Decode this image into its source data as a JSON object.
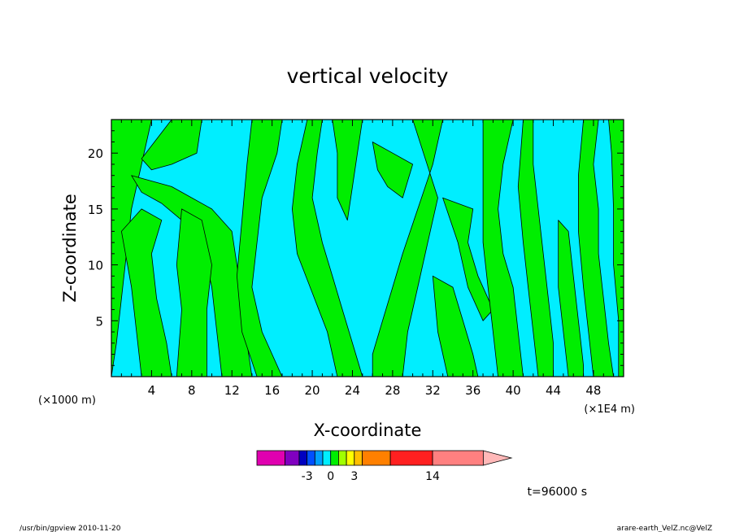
{
  "chart_data": {
    "type": "heatmap",
    "title": "vertical velocity",
    "xlabel": "X-coordinate",
    "ylabel": "Z-coordinate",
    "x_unit_left": "(×1000 m)",
    "x_unit_right": "(×1E4 m)",
    "xlim": [
      0,
      51
    ],
    "ylim": [
      0,
      23
    ],
    "x_ticks": [
      4,
      8,
      12,
      16,
      20,
      24,
      28,
      32,
      36,
      40,
      44,
      48
    ],
    "y_ticks": [
      5,
      10,
      15,
      20
    ],
    "field_colors": {
      "negative": "#00eeff",
      "positive": "#00ee00"
    },
    "regions": [
      {
        "sign": "positive",
        "polygon": [
          [
            0,
            23
          ],
          [
            4,
            23
          ],
          [
            3,
            19
          ],
          [
            2,
            15
          ],
          [
            1.5,
            11
          ],
          [
            1,
            7
          ],
          [
            0.5,
            3
          ],
          [
            0,
            0
          ]
        ]
      },
      {
        "sign": "positive",
        "polygon": [
          [
            6,
            23
          ],
          [
            9,
            23
          ],
          [
            8.5,
            20
          ],
          [
            6,
            19
          ],
          [
            4,
            18.5
          ],
          [
            3,
            19.5
          ]
        ]
      },
      {
        "sign": "positive",
        "polygon": [
          [
            2,
            18
          ],
          [
            6,
            17
          ],
          [
            10,
            15
          ],
          [
            12,
            13
          ],
          [
            12.5,
            10
          ],
          [
            13,
            7
          ],
          [
            13.5,
            3
          ],
          [
            14,
            0
          ],
          [
            11,
            0
          ],
          [
            10.5,
            4
          ],
          [
            10,
            8
          ],
          [
            9,
            12
          ],
          [
            7,
            14
          ],
          [
            5,
            15.5
          ],
          [
            3,
            16.5
          ]
        ]
      },
      {
        "sign": "positive",
        "polygon": [
          [
            1,
            13
          ],
          [
            3,
            15
          ],
          [
            5,
            14
          ],
          [
            4,
            11
          ],
          [
            4.5,
            7
          ],
          [
            5.5,
            3
          ],
          [
            6,
            0
          ],
          [
            3,
            0
          ],
          [
            2.5,
            4
          ],
          [
            2,
            8
          ]
        ]
      },
      {
        "sign": "positive",
        "polygon": [
          [
            7,
            15
          ],
          [
            9,
            14
          ],
          [
            10,
            10
          ],
          [
            9.5,
            6
          ],
          [
            9.5,
            0
          ],
          [
            6.5,
            0
          ],
          [
            7,
            6
          ],
          [
            6.5,
            10
          ]
        ]
      },
      {
        "sign": "positive",
        "polygon": [
          [
            14,
            23
          ],
          [
            17,
            23
          ],
          [
            16.5,
            20
          ],
          [
            15,
            16
          ],
          [
            14.5,
            12
          ],
          [
            14,
            8
          ],
          [
            15,
            4
          ],
          [
            17,
            0
          ],
          [
            14.5,
            0
          ],
          [
            13,
            4
          ],
          [
            12.5,
            9
          ],
          [
            13,
            14
          ],
          [
            13.5,
            19
          ]
        ]
      },
      {
        "sign": "positive",
        "polygon": [
          [
            19.5,
            23
          ],
          [
            21,
            23
          ],
          [
            20.5,
            20
          ],
          [
            20,
            16
          ],
          [
            21,
            12
          ],
          [
            22,
            9
          ],
          [
            23,
            6
          ],
          [
            24,
            3
          ],
          [
            25,
            0
          ],
          [
            22.5,
            0
          ],
          [
            21.5,
            4
          ],
          [
            20,
            7.5
          ],
          [
            18.5,
            11
          ],
          [
            18,
            15
          ],
          [
            18.5,
            19
          ]
        ]
      },
      {
        "sign": "positive",
        "polygon": [
          [
            22,
            23
          ],
          [
            25,
            23
          ],
          [
            24.5,
            20
          ],
          [
            24,
            17
          ],
          [
            23.5,
            14
          ],
          [
            22.5,
            16
          ],
          [
            22.5,
            20
          ]
        ]
      },
      {
        "sign": "positive",
        "polygon": [
          [
            26,
            21
          ],
          [
            28,
            20
          ],
          [
            30,
            19
          ],
          [
            29,
            16
          ],
          [
            27.5,
            17
          ],
          [
            26.5,
            18.5
          ]
        ]
      },
      {
        "sign": "positive",
        "polygon": [
          [
            30,
            23
          ],
          [
            33,
            23
          ],
          [
            32,
            19
          ],
          [
            30.5,
            15
          ],
          [
            29,
            11
          ],
          [
            28,
            8
          ],
          [
            27,
            5
          ],
          [
            26,
            2
          ],
          [
            26,
            0
          ],
          [
            29,
            0
          ],
          [
            29.5,
            4
          ],
          [
            30.5,
            8
          ],
          [
            31.5,
            12
          ],
          [
            32.5,
            16
          ]
        ]
      },
      {
        "sign": "positive",
        "polygon": [
          [
            32,
            9
          ],
          [
            34,
            8
          ],
          [
            35,
            5
          ],
          [
            36,
            2
          ],
          [
            36.5,
            0
          ],
          [
            33.5,
            0
          ],
          [
            32.5,
            4
          ]
        ]
      },
      {
        "sign": "positive",
        "polygon": [
          [
            33,
            16
          ],
          [
            36,
            15
          ],
          [
            35.5,
            12
          ],
          [
            36.5,
            9
          ],
          [
            38,
            6
          ],
          [
            37,
            5
          ],
          [
            35.5,
            8
          ],
          [
            34.5,
            12
          ]
        ]
      },
      {
        "sign": "positive",
        "polygon": [
          [
            37,
            23
          ],
          [
            40,
            23
          ],
          [
            39,
            19
          ],
          [
            38.5,
            15
          ],
          [
            39,
            11
          ],
          [
            40,
            8
          ],
          [
            40.5,
            4
          ],
          [
            41,
            0
          ],
          [
            38.5,
            0
          ],
          [
            38,
            4
          ],
          [
            37.5,
            8
          ],
          [
            37,
            12
          ],
          [
            37,
            17
          ]
        ]
      },
      {
        "sign": "positive",
        "polygon": [
          [
            41,
            23
          ],
          [
            42,
            23
          ],
          [
            42,
            19
          ],
          [
            42.5,
            15
          ],
          [
            43,
            11
          ],
          [
            43.5,
            7
          ],
          [
            44,
            3
          ],
          [
            44,
            0
          ],
          [
            42.5,
            0
          ],
          [
            42,
            4
          ],
          [
            41.5,
            8
          ],
          [
            41,
            12
          ],
          [
            40.5,
            17
          ]
        ]
      },
      {
        "sign": "positive",
        "polygon": [
          [
            44.5,
            14
          ],
          [
            45.5,
            13
          ],
          [
            46,
            9
          ],
          [
            46.5,
            5
          ],
          [
            47,
            1
          ],
          [
            47,
            0
          ],
          [
            45.5,
            0
          ],
          [
            45,
            4
          ],
          [
            44.5,
            8
          ]
        ]
      },
      {
        "sign": "positive",
        "polygon": [
          [
            47,
            23
          ],
          [
            48.5,
            23
          ],
          [
            48,
            19
          ],
          [
            48.5,
            15
          ],
          [
            48.5,
            11
          ],
          [
            49,
            7
          ],
          [
            49.5,
            3
          ],
          [
            50,
            0
          ],
          [
            48,
            0
          ],
          [
            47.5,
            4
          ],
          [
            47,
            8
          ],
          [
            46.5,
            13
          ],
          [
            46.5,
            18
          ]
        ]
      },
      {
        "sign": "positive",
        "polygon": [
          [
            49.5,
            23
          ],
          [
            51,
            23
          ],
          [
            51,
            0
          ],
          [
            50.5,
            0
          ],
          [
            50.5,
            5
          ],
          [
            50,
            10
          ],
          [
            50,
            15
          ],
          [
            49.8,
            20
          ]
        ]
      }
    ],
    "colorbar": {
      "labels": [
        {
          "text": "-3",
          "value": -3
        },
        {
          "text": "0",
          "value": 0
        },
        {
          "text": "3",
          "value": 3
        },
        {
          "text": "14",
          "value": 14
        }
      ],
      "segments": [
        {
          "from": -10,
          "to": -6,
          "color": "#e000b0"
        },
        {
          "from": -6,
          "to": -4,
          "color": "#8000c0"
        },
        {
          "from": -4,
          "to": -3,
          "color": "#0000c0"
        },
        {
          "from": -3,
          "to": -2,
          "color": "#0050ff"
        },
        {
          "from": -2,
          "to": -1,
          "color": "#00a0ff"
        },
        {
          "from": -1,
          "to": 0,
          "color": "#00eeff"
        },
        {
          "from": 0,
          "to": 1,
          "color": "#00ee00"
        },
        {
          "from": 1,
          "to": 2,
          "color": "#a0ff00"
        },
        {
          "from": 2,
          "to": 3,
          "color": "#ffff00"
        },
        {
          "from": 3,
          "to": 4,
          "color": "#ffc000"
        },
        {
          "from": 4,
          "to": 8,
          "color": "#ff8000"
        },
        {
          "from": 8,
          "to": 14,
          "color": "#ff2020"
        },
        {
          "from": 14,
          "to": 25,
          "color": "#ff8080"
        },
        {
          "from": 25,
          "to": 30,
          "color": "#ffb8b8",
          "arrow": true
        }
      ]
    },
    "time_label": "t=96000 s"
  },
  "footer": {
    "left": "/usr/bin/gpview   2010-11-20",
    "right": "arare-earth_VelZ.nc@VelZ"
  }
}
